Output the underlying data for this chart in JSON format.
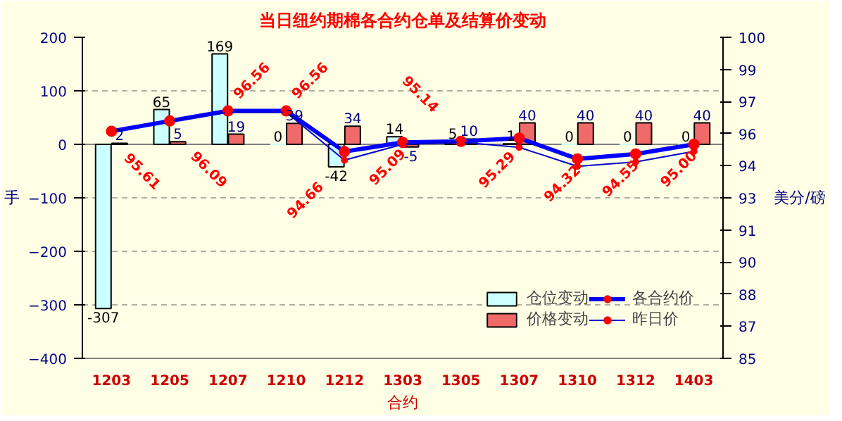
{
  "chart_data": {
    "type": "bar",
    "title": "当日纽约期棉各合约仓单及结算价变动",
    "xlabel": "合约",
    "ylabel": "手",
    "y2label": "美分/磅",
    "categories": [
      "1203",
      "1205",
      "1207",
      "1210",
      "1212",
      "1303",
      "1305",
      "1307",
      "1310",
      "1312",
      "1403"
    ],
    "series": [
      {
        "name": "仓位变动",
        "color": "#ccffff",
        "values": [
          -307,
          65,
          169,
          0,
          -42,
          14,
          5,
          1,
          0,
          0,
          0
        ],
        "value_labels": [
          "-307",
          "65",
          "169",
          "0",
          "-42",
          "14",
          "5",
          "1",
          "0",
          "0",
          "0"
        ]
      },
      {
        "name": "价格变动",
        "color": "#f06a6a",
        "values": [
          2,
          5,
          19,
          39,
          34,
          -5,
          10,
          40,
          40,
          40,
          40
        ],
        "value_labels": [
          "2",
          "5",
          "19",
          "39",
          "34",
          "-5",
          "10",
          "40",
          "40",
          "40",
          "40"
        ]
      },
      {
        "name": "各合约价",
        "type": "line",
        "axis": "y2",
        "color": "#0000ff",
        "marker": "circle",
        "values": [
          95.61,
          96.09,
          96.56,
          96.56,
          94.66,
          95.09,
          95.14,
          95.29,
          94.32,
          94.55,
          95.0
        ],
        "value_labels": [
          "95.61",
          "96.09",
          "96.56",
          "96.56",
          "94.66",
          "95.09",
          "95.14",
          "95.29",
          "94.32",
          "94.55",
          "95.00"
        ]
      },
      {
        "name": "昨日价",
        "type": "line",
        "axis": "y2",
        "color": "#0000cc",
        "marker": "circle",
        "values": [
          null,
          96.09,
          96.5,
          96.5,
          94.26,
          95.0,
          95.1,
          94.86,
          93.97,
          94.18,
          94.67
        ]
      }
    ],
    "ylim": [
      -400,
      200
    ],
    "yticks": [
      -400,
      -300,
      -200,
      -100,
      0,
      100,
      200
    ],
    "y2lim": [
      85,
      100
    ],
    "y2ticks": [
      85,
      {
        "value": 86.5,
        "label": "87"
      },
      88,
      {
        "value": 89.5,
        "label": "90"
      },
      91,
      {
        "value": 92.5,
        "label": "93"
      },
      94,
      {
        "value": 95.5,
        "label": "96"
      },
      97,
      {
        "value": 98.5,
        "label": "99"
      },
      100
    ],
    "grid": "y",
    "legend": "bottom right"
  }
}
